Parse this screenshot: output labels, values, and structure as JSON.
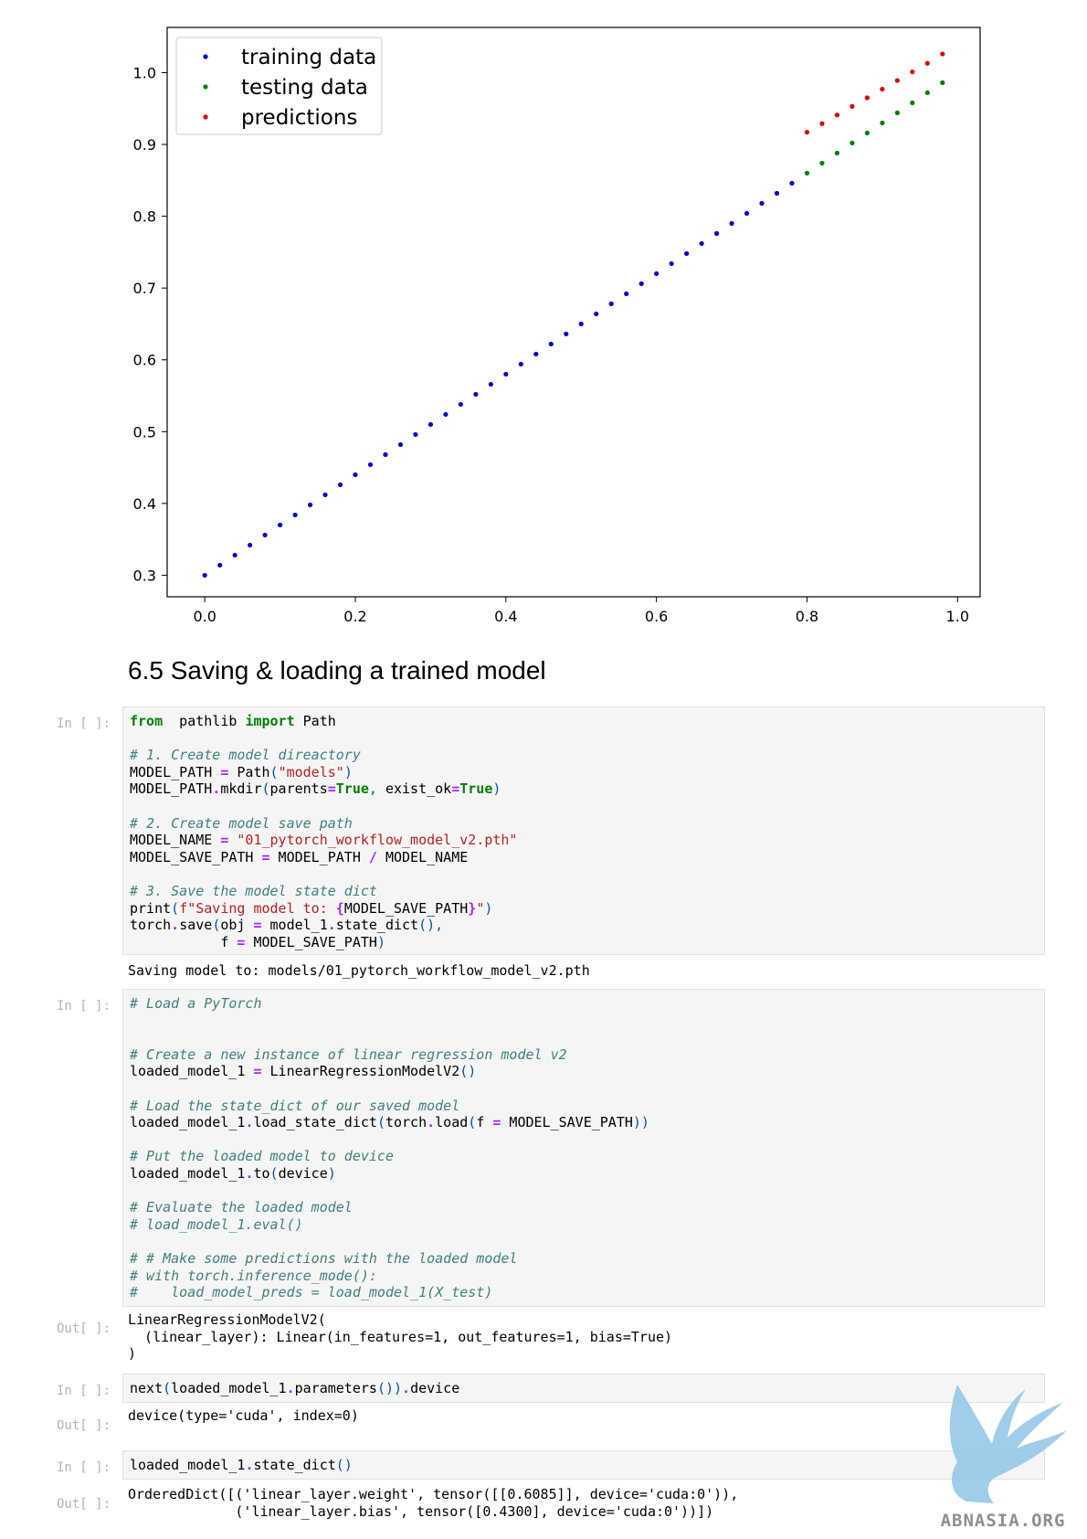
{
  "chart_data": {
    "type": "scatter",
    "xlim": [
      -0.05,
      1.03
    ],
    "ylim": [
      0.27,
      1.063
    ],
    "xticks": [
      "0.0",
      "0.2",
      "0.4",
      "0.6",
      "0.8",
      "1.0"
    ],
    "yticks": [
      "0.3",
      "0.4",
      "0.5",
      "0.6",
      "0.7",
      "0.8",
      "0.9",
      "1.0"
    ],
    "grid": false,
    "legend_position": "top-left",
    "series": [
      {
        "name": "training data",
        "color": "#0000cc",
        "x": [
          0.0,
          0.02,
          0.04,
          0.06,
          0.08,
          0.1,
          0.12,
          0.14,
          0.16,
          0.18,
          0.2,
          0.22,
          0.24,
          0.26,
          0.28,
          0.3,
          0.32,
          0.34,
          0.36,
          0.38,
          0.4,
          0.42,
          0.44,
          0.46,
          0.48,
          0.5,
          0.52,
          0.54,
          0.56,
          0.58,
          0.6,
          0.62,
          0.64,
          0.66,
          0.68,
          0.7,
          0.72,
          0.74,
          0.76,
          0.78
        ],
        "y": [
          0.3,
          0.314,
          0.328,
          0.342,
          0.356,
          0.37,
          0.384,
          0.398,
          0.412,
          0.426,
          0.44,
          0.454,
          0.468,
          0.482,
          0.496,
          0.51,
          0.524,
          0.538,
          0.552,
          0.566,
          0.58,
          0.594,
          0.608,
          0.622,
          0.636,
          0.65,
          0.664,
          0.678,
          0.692,
          0.706,
          0.72,
          0.734,
          0.748,
          0.762,
          0.776,
          0.79,
          0.804,
          0.818,
          0.832,
          0.846
        ]
      },
      {
        "name": "testing data",
        "color": "#008000",
        "x": [
          0.8,
          0.82,
          0.84,
          0.86,
          0.88,
          0.9,
          0.92,
          0.94,
          0.96,
          0.98
        ],
        "y": [
          0.86,
          0.874,
          0.888,
          0.902,
          0.916,
          0.93,
          0.944,
          0.958,
          0.972,
          0.986
        ]
      },
      {
        "name": "predictions",
        "color": "#dd0000",
        "x": [
          0.8,
          0.82,
          0.84,
          0.86,
          0.88,
          0.9,
          0.92,
          0.94,
          0.96,
          0.98
        ],
        "y": [
          0.917,
          0.929,
          0.941,
          0.953,
          0.965,
          0.977,
          0.989,
          1.001,
          1.013,
          1.026
        ]
      }
    ]
  },
  "heading": "6.5 Saving & loading a trained model",
  "prompts": {
    "in": "In [ ]:",
    "out": "Out[ ]:"
  },
  "cells": [
    {
      "lines": [
        [
          [
            "kw",
            "from"
          ],
          [
            "",
            "  pathlib "
          ],
          [
            "kw",
            "import"
          ],
          [
            "",
            " Path"
          ]
        ],
        [],
        [
          [
            "cm",
            "# 1. Create model direactory"
          ]
        ],
        [
          [
            "",
            "MODEL_PATH "
          ],
          [
            "op",
            "="
          ],
          [
            "",
            " Path"
          ],
          [
            "pn",
            "("
          ],
          [
            "st",
            "\"models\""
          ],
          [
            "pn",
            ")"
          ]
        ],
        [
          [
            "",
            "MODEL_PATH"
          ],
          [
            "op",
            "."
          ],
          [
            "",
            "mkdir"
          ],
          [
            "pn",
            "("
          ],
          [
            "",
            "parents"
          ],
          [
            "op",
            "="
          ],
          [
            "kw",
            "True"
          ],
          [
            "pn",
            ","
          ],
          [
            "",
            " exist_ok"
          ],
          [
            "op",
            "="
          ],
          [
            "kw",
            "True"
          ],
          [
            "pn",
            ")"
          ]
        ],
        [],
        [
          [
            "cm",
            "# 2. Create model save path"
          ]
        ],
        [
          [
            "",
            "MODEL_NAME "
          ],
          [
            "op",
            "="
          ],
          [
            "",
            " "
          ],
          [
            "st",
            "\"01_pytorch_workflow_model_v2.pth\""
          ]
        ],
        [
          [
            "",
            "MODEL_SAVE_PATH "
          ],
          [
            "op",
            "="
          ],
          [
            "",
            " MODEL_PATH "
          ],
          [
            "op",
            "/"
          ],
          [
            "",
            " MODEL_NAME"
          ]
        ],
        [],
        [
          [
            "cm",
            "# 3. Save the model state dict"
          ]
        ],
        [
          [
            "",
            "print"
          ],
          [
            "pn",
            "("
          ],
          [
            "st",
            "f\"Saving model to: "
          ],
          [
            "op",
            "{"
          ],
          [
            "",
            "MODEL_SAVE_PATH"
          ],
          [
            "op",
            "}"
          ],
          [
            "st",
            "\""
          ],
          [
            "pn",
            ")"
          ]
        ],
        [
          [
            "",
            "torch"
          ],
          [
            "op",
            "."
          ],
          [
            "",
            "save"
          ],
          [
            "pn",
            "("
          ],
          [
            "",
            "obj "
          ],
          [
            "op",
            "="
          ],
          [
            "",
            " model_1"
          ],
          [
            "op",
            "."
          ],
          [
            "",
            "state_dict"
          ],
          [
            "pn",
            "(),"
          ]
        ],
        [
          [
            "",
            "           f "
          ],
          [
            "op",
            "="
          ],
          [
            "",
            " MODEL_SAVE_PATH"
          ],
          [
            "pn",
            ")"
          ]
        ]
      ]
    },
    {
      "lines": [
        [
          [
            "cm",
            "# Load a PyTorch"
          ]
        ],
        [],
        [],
        [
          [
            "cm",
            "# Create a new instance of linear regression model v2"
          ]
        ],
        [
          [
            "",
            "loaded_model_1 "
          ],
          [
            "op",
            "="
          ],
          [
            "",
            " LinearRegressionModelV2"
          ],
          [
            "pn",
            "()"
          ]
        ],
        [],
        [
          [
            "cm",
            "# Load the state_dict of our saved model"
          ]
        ],
        [
          [
            "",
            "loaded_model_1"
          ],
          [
            "op",
            "."
          ],
          [
            "",
            "load_state_dict"
          ],
          [
            "pn",
            "("
          ],
          [
            "",
            "torch"
          ],
          [
            "op",
            "."
          ],
          [
            "",
            "load"
          ],
          [
            "pn",
            "("
          ],
          [
            "",
            "f "
          ],
          [
            "op",
            "="
          ],
          [
            "",
            " MODEL_SAVE_PATH"
          ],
          [
            "pn",
            "))"
          ]
        ],
        [],
        [
          [
            "cm",
            "# Put the loaded model to device"
          ]
        ],
        [
          [
            "",
            "loaded_model_1"
          ],
          [
            "op",
            "."
          ],
          [
            "",
            "to"
          ],
          [
            "pn",
            "("
          ],
          [
            "",
            "device"
          ],
          [
            "pn",
            ")"
          ]
        ],
        [],
        [
          [
            "cm",
            "# Evaluate the loaded model"
          ]
        ],
        [
          [
            "cm",
            "# load_model_1.eval()"
          ]
        ],
        [],
        [
          [
            "cm",
            "# # Make some predictions with the loaded model"
          ]
        ],
        [
          [
            "cm",
            "# with torch.inference_mode():"
          ]
        ],
        [
          [
            "cm",
            "#    load_model_preds = load_model_1(X_test)"
          ]
        ]
      ]
    },
    {
      "lines": [
        [
          [
            "",
            "next"
          ],
          [
            "pn",
            "("
          ],
          [
            "",
            "loaded_model_1"
          ],
          [
            "op",
            "."
          ],
          [
            "",
            "parameters"
          ],
          [
            "pn",
            "())"
          ],
          [
            "op",
            "."
          ],
          [
            "",
            "device"
          ]
        ]
      ]
    },
    {
      "lines": [
        [
          [
            "",
            "loaded_model_1"
          ],
          [
            "op",
            "."
          ],
          [
            "",
            "state_dict"
          ],
          [
            "pn",
            "()"
          ]
        ]
      ]
    }
  ],
  "outputs": [
    "Saving model to: models/01_pytorch_workflow_model_v2.pth",
    "LinearRegressionModelV2(\n  (linear_layer): Linear(in_features=1, out_features=1, bias=True)\n)",
    "device(type='cuda', index=0)",
    "OrderedDict([('linear_layer.weight', tensor([[0.6085]], device='cuda:0')),\n             ('linear_layer.bias', tensor([0.4300], device='cuda:0'))])"
  ],
  "watermark": {
    "text": "ABNASIA.ORG",
    "icon": "griffin-logo-icon"
  }
}
